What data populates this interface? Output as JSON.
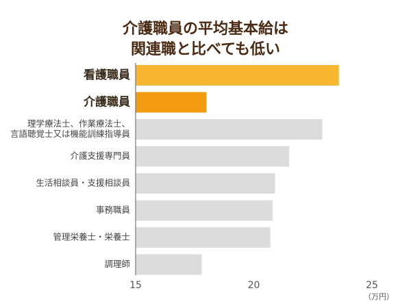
{
  "chart_data": {
    "type": "bar",
    "orientation": "horizontal",
    "title_lines": [
      "介護職員の平均基本給は",
      "関連職と比べても低い"
    ],
    "categories": [
      [
        "看護職員"
      ],
      [
        "介護職員"
      ],
      [
        "理学療法士、作業療法士、",
        "言語聴覚士又は機能訓練指導員"
      ],
      [
        "介護支援専門員"
      ],
      [
        "生活相談員・支援相談員"
      ],
      [
        "事務職員"
      ],
      [
        "管理栄養士・栄養士"
      ],
      [
        "調理師"
      ]
    ],
    "values": [
      23.6,
      18.0,
      22.9,
      21.5,
      20.9,
      20.8,
      20.7,
      17.8
    ],
    "highlight": [
      0,
      1
    ],
    "colors": [
      "#f7b731",
      "#f39c12",
      "#dcdcdc",
      "#dcdcdc",
      "#dcdcdc",
      "#dcdcdc",
      "#dcdcdc",
      "#dcdcdc"
    ],
    "xlim": [
      15,
      25
    ],
    "xticks": [
      "15",
      "20",
      "25"
    ],
    "x_unit": "（万円）",
    "grid": false
  }
}
